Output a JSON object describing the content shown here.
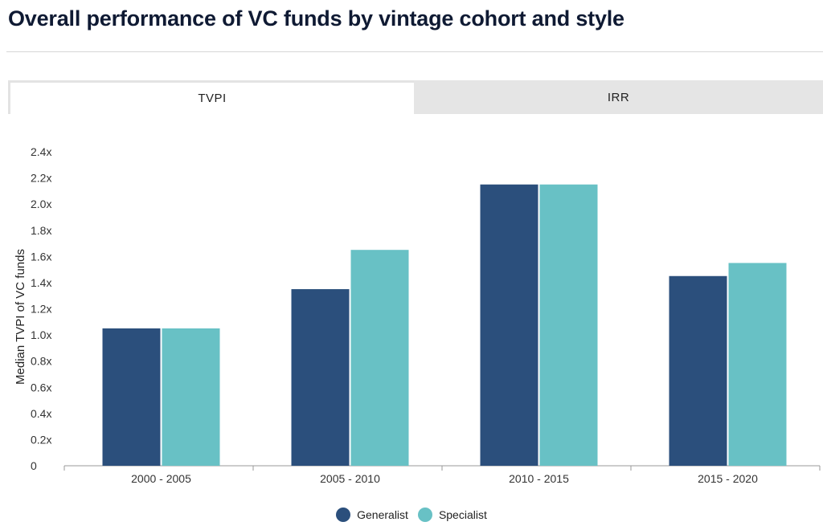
{
  "page": {
    "title": "Overall performance of VC funds by vintage cohort and style"
  },
  "tabs": [
    {
      "label": "TVPI",
      "active": true
    },
    {
      "label": "IRR",
      "active": false
    }
  ],
  "colors": {
    "generalist": "#2b4f7c",
    "specialist": "#68c1c5",
    "axis": "#999999"
  },
  "chart_data": {
    "type": "bar",
    "title": "",
    "xlabel": "",
    "ylabel": "Median TVPI of VC funds",
    "categories": [
      "2000 - 2005",
      "2005 - 2010",
      "2010 - 2015",
      "2015 - 2020"
    ],
    "series": [
      {
        "name": "Generalist",
        "values": [
          1.05,
          1.35,
          2.15,
          1.45
        ]
      },
      {
        "name": "Specialist",
        "values": [
          1.05,
          1.65,
          2.15,
          1.55
        ]
      }
    ],
    "ylim": [
      0,
      2.4
    ],
    "yticks": [
      {
        "value": 0,
        "label": "0"
      },
      {
        "value": 0.2,
        "label": "0.2x"
      },
      {
        "value": 0.4,
        "label": "0.4x"
      },
      {
        "value": 0.6,
        "label": "0.6x"
      },
      {
        "value": 0.8,
        "label": "0.8x"
      },
      {
        "value": 1.0,
        "label": "1.0x"
      },
      {
        "value": 1.2,
        "label": "1.2x"
      },
      {
        "value": 1.4,
        "label": "1.4x"
      },
      {
        "value": 1.6,
        "label": "1.6x"
      },
      {
        "value": 1.8,
        "label": "1.8x"
      },
      {
        "value": 2.0,
        "label": "2.0x"
      },
      {
        "value": 2.2,
        "label": "2.2x"
      },
      {
        "value": 2.4,
        "label": "2.4x"
      }
    ],
    "grid": false,
    "legend_position": "bottom-center"
  }
}
